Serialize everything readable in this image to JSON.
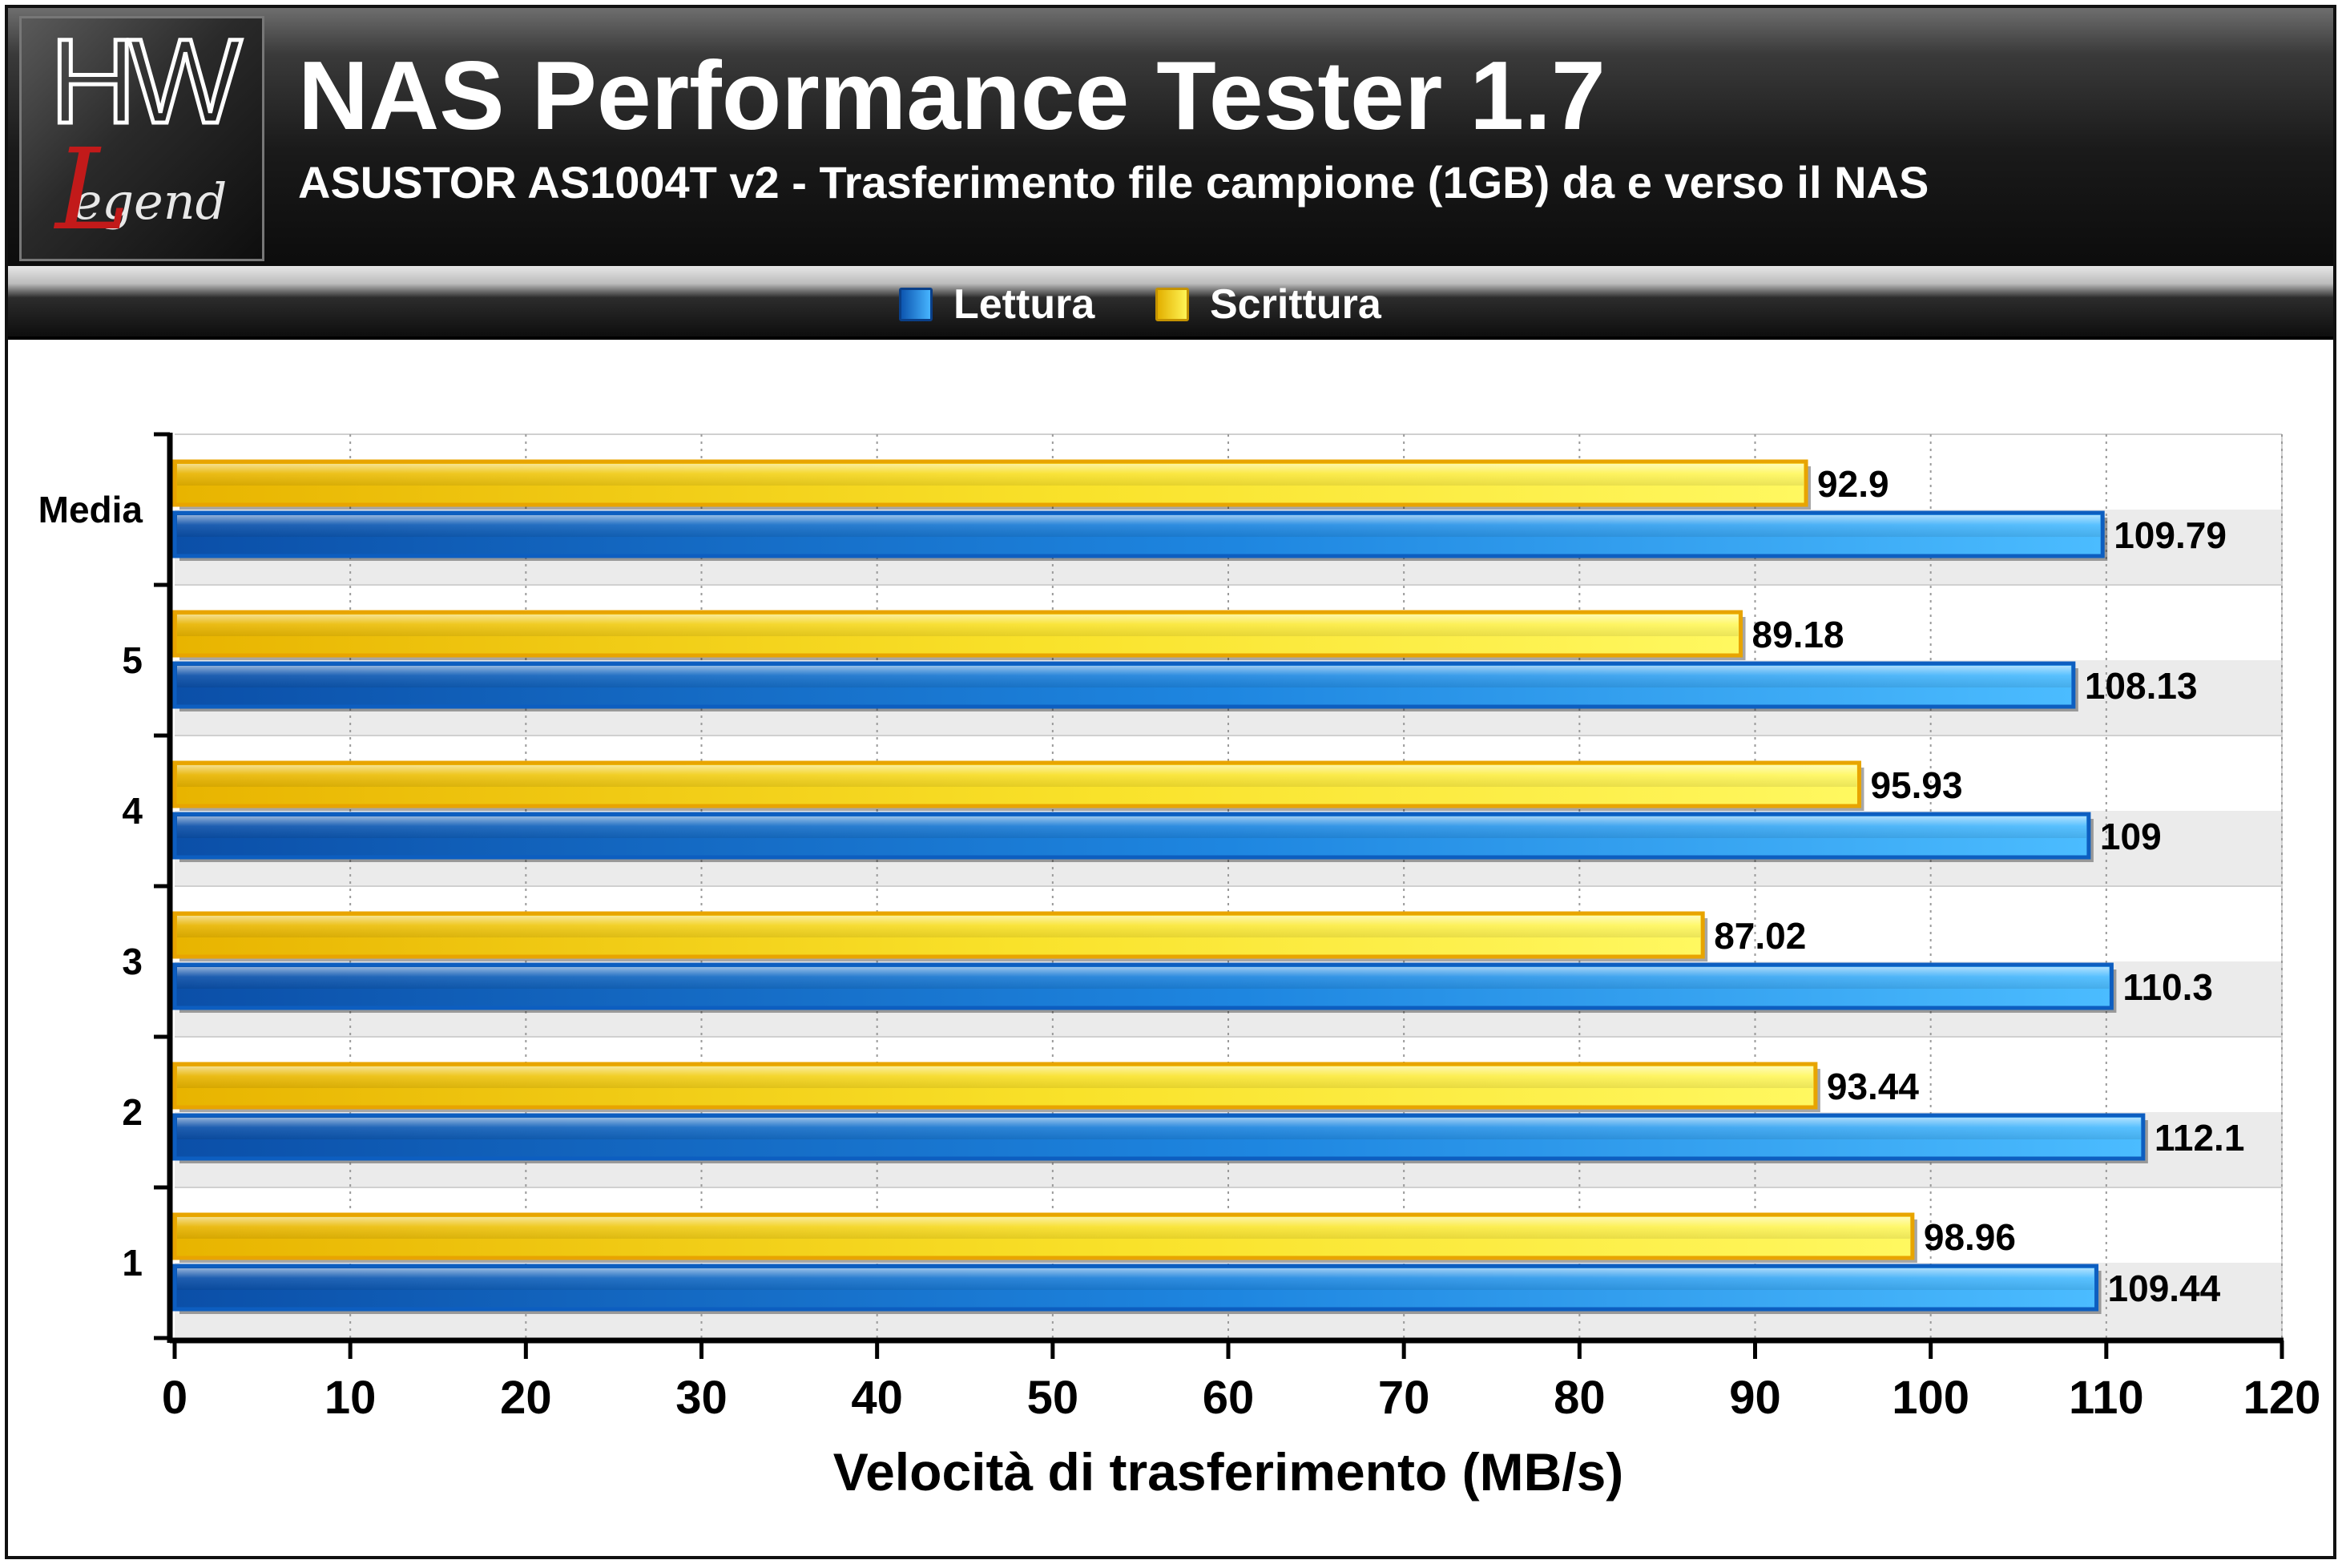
{
  "header": {
    "title": "NAS Performance Tester 1.7",
    "subtitle": "ASUSTOR AS1004T v2 - Trasferimento file campione (1GB) da e verso il NAS",
    "logo_text": "HW Legend"
  },
  "chart_data": {
    "type": "bar",
    "orientation": "horizontal",
    "title": "NAS Performance Tester 1.7",
    "subtitle": "ASUSTOR AS1004T v2 - Trasferimento file campione (1GB) da e verso il NAS",
    "xlabel": "Velocità di trasferimento (MB/s)",
    "ylabel": "",
    "xlim": [
      0,
      120
    ],
    "xticks": [
      0,
      10,
      20,
      30,
      40,
      50,
      60,
      70,
      80,
      90,
      100,
      110,
      120
    ],
    "grid": "vertical dotted",
    "legend_position": "top-center",
    "categories": [
      "Media",
      "5",
      "4",
      "3",
      "2",
      "1"
    ],
    "series": [
      {
        "name": "Scrittura",
        "color": "#f5d214",
        "values": [
          92.9,
          89.18,
          95.93,
          87.02,
          93.44,
          98.96
        ],
        "labels": [
          "92.9",
          "89.18",
          "95.93",
          "87.02",
          "93.44",
          "98.96"
        ]
      },
      {
        "name": "Lettura",
        "color": "#1f8ae6",
        "values": [
          109.79,
          108.13,
          109,
          110.3,
          112.1,
          109.44
        ],
        "labels": [
          "109.79",
          "108.13",
          "109",
          "110.3",
          "112.1",
          "109.44"
        ]
      }
    ]
  }
}
